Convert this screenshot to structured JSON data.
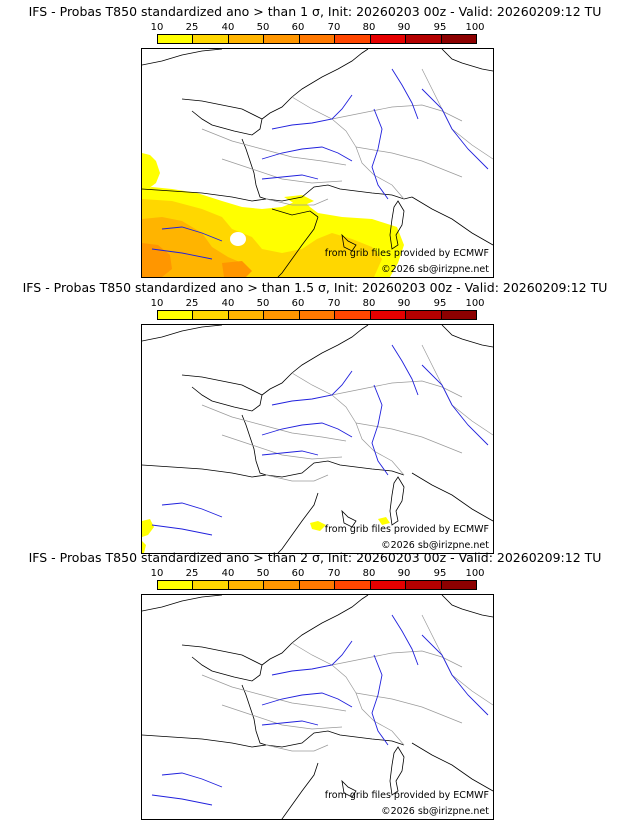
{
  "legend": {
    "ticks": [
      "10",
      "25",
      "40",
      "50",
      "60",
      "70",
      "80",
      "90",
      "95",
      "100"
    ],
    "colors": [
      "#ffff00",
      "#ffd700",
      "#ffb400",
      "#ff9600",
      "#ff7800",
      "#ff4600",
      "#e60000",
      "#b40000",
      "#8c0000",
      "#500000"
    ]
  },
  "panels": [
    {
      "title": "IFS - Probas T850  standardized ano > than 1 σ, Init: 20260203 00z - Valid: 20260209:12 TU",
      "sigma": 1
    },
    {
      "title": "IFS - Probas T850  standardized ano > than 1.5 σ, Init: 20260203 00z - Valid: 20260209:12 TU",
      "sigma": 1.5
    },
    {
      "title": "IFS - Probas T850  standardized ano > than 2 σ, Init: 20260203 00z - Valid: 20260209:12 TU",
      "sigma": 2
    }
  ],
  "credits": {
    "source": "from grib files provided by ECMWF",
    "copyright": "©2026 sb@irizpne.net"
  },
  "map": {
    "coast_color": "#000000",
    "river_color": "#2020dd",
    "border_color": "#9a9a9a"
  }
}
